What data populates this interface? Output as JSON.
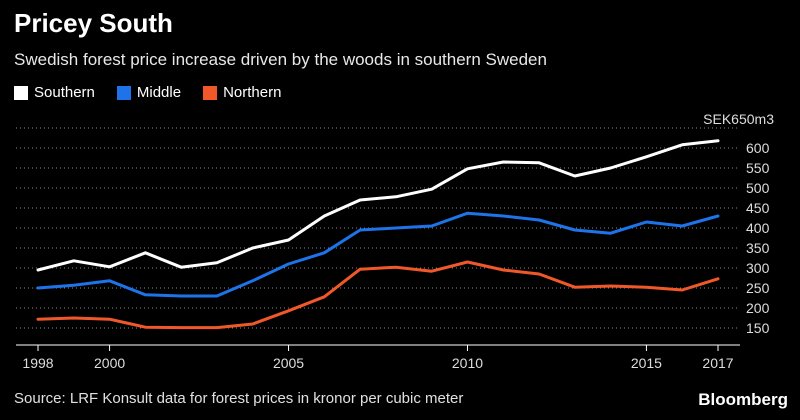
{
  "chart_data": {
    "type": "line",
    "title": "Pricey South",
    "subtitle": "Swedish forest price increase driven by the woods in southern Sweden",
    "y_unit_label": "SEK650m3",
    "x": [
      1998,
      1999,
      2000,
      2001,
      2002,
      2003,
      2004,
      2005,
      2006,
      2007,
      2008,
      2009,
      2010,
      2011,
      2012,
      2013,
      2014,
      2015,
      2016,
      2017
    ],
    "x_ticks": [
      1998,
      2000,
      2005,
      2010,
      2015,
      2017
    ],
    "y_ticks": [
      150,
      200,
      250,
      300,
      350,
      400,
      450,
      500,
      550,
      600
    ],
    "ylim": [
      125,
      650
    ],
    "grid": true,
    "legend_position": "top-left",
    "series": [
      {
        "name": "Southern",
        "color": "#ffffff",
        "values": [
          295,
          318,
          303,
          338,
          302,
          313,
          350,
          370,
          430,
          470,
          478,
          497,
          548,
          565,
          563,
          530,
          550,
          578,
          608,
          618
        ]
      },
      {
        "name": "Middle",
        "color": "#1e73e8",
        "values": [
          250,
          257,
          268,
          233,
          230,
          230,
          268,
          310,
          338,
          395,
          400,
          405,
          437,
          430,
          420,
          395,
          387,
          415,
          405,
          430
        ]
      },
      {
        "name": "Northern",
        "color": "#f0582a",
        "values": [
          172,
          175,
          172,
          152,
          151,
          151,
          160,
          193,
          228,
          297,
          302,
          292,
          315,
          295,
          285,
          252,
          255,
          252,
          245,
          273
        ]
      }
    ],
    "source": "Source: LRF Konsult data for forest prices in kronor per cubic meter"
  },
  "brand": "Bloomberg"
}
